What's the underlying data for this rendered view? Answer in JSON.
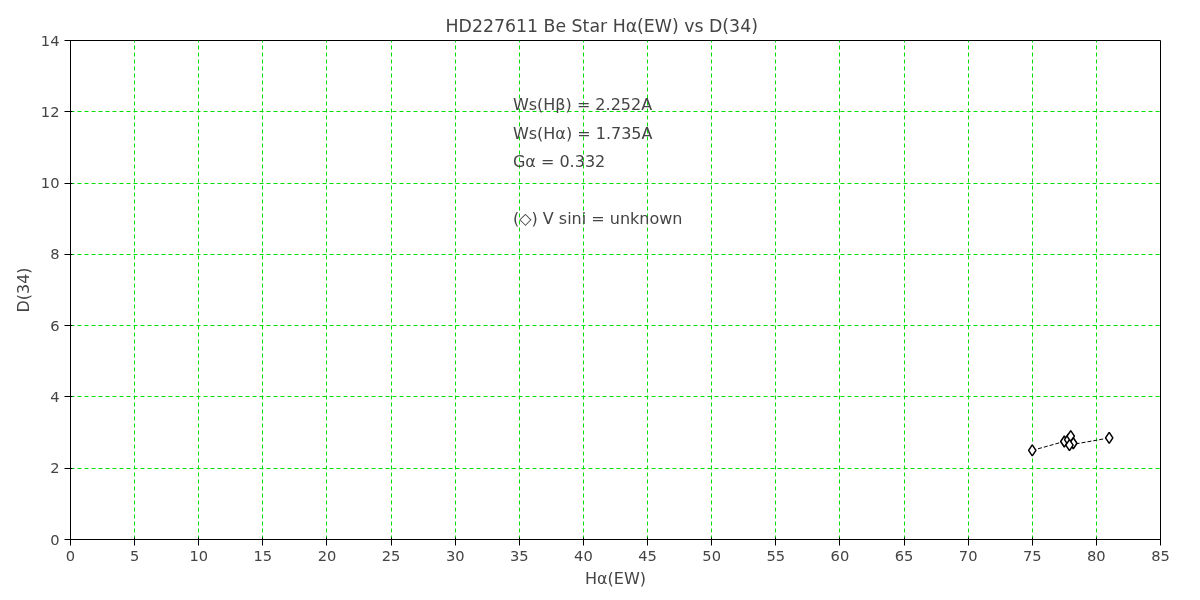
{
  "chart_data": {
    "type": "line",
    "title": "HD227611    Be Star   Hα(EW) vs D(34)",
    "xlabel": "Hα(EW)",
    "ylabel": "D(34)",
    "annotations": [
      "Ws(Hβ) = 2.252A",
      "Ws(Hα) = 1.735A",
      "Gα = 0.332",
      "(◇) V sini = unknown"
    ],
    "x": [
      75.0,
      77.5,
      77.8,
      78.0,
      78.2,
      77.9,
      81.0
    ],
    "series": [
      {
        "color": "#000000",
        "values": [
          2.5,
          2.75,
          2.8,
          2.9,
          2.7,
          2.65,
          2.85
        ]
      }
    ],
    "xlim": [
      0,
      85
    ],
    "ylim": [
      0,
      14
    ],
    "xticks": [
      0,
      5,
      10,
      15,
      20,
      25,
      30,
      35,
      40,
      45,
      50,
      55,
      60,
      65,
      70,
      75,
      80,
      85
    ],
    "yticks": [
      0,
      2,
      4,
      6,
      8,
      10,
      12,
      14
    ],
    "grid": true,
    "marker": "diamond",
    "line_style": "dashed"
  }
}
